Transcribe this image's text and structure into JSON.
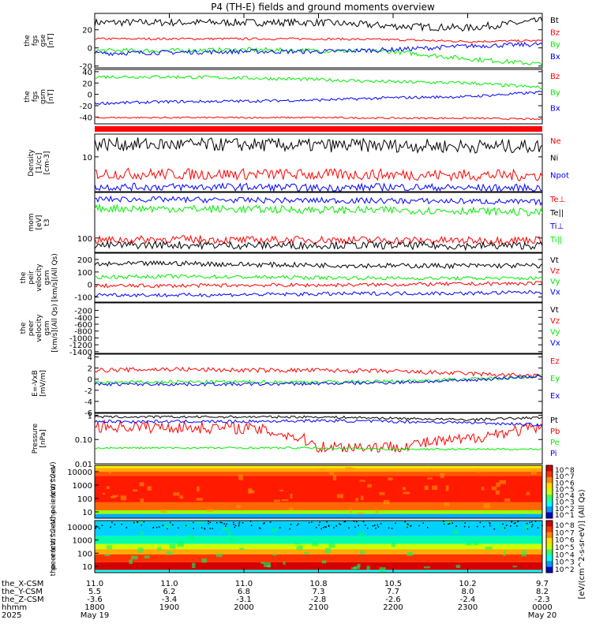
{
  "title": "P4 (TH-E) fields and ground moments overview",
  "colors": {
    "black": "#000000",
    "red": "#ff0000",
    "green": "#00ee00",
    "blue": "#0000ff"
  },
  "chart_data": {
    "type": "line",
    "time_axis": {
      "ticks": [
        "1800",
        "1900",
        "2000",
        "2100",
        "2200",
        "2300",
        "0000"
      ],
      "date_labels": {
        "first": "May 19",
        "last": "May 20"
      },
      "year": "2025",
      "rows": [
        {
          "label": "the_X-CSM",
          "values": [
            "11.0",
            "11.0",
            "11.0",
            "10.8",
            "10.5",
            "10.2",
            "9.7"
          ]
        },
        {
          "label": "the_Y-CSM",
          "values": [
            "5.5",
            "6.2",
            "6.8",
            "7.3",
            "7.7",
            "8.0",
            "8.2"
          ]
        },
        {
          "label": "the_Z-CSM",
          "values": [
            "-3.6",
            "-3.4",
            "-3.1",
            "-2.8",
            "-2.6",
            "-2.4",
            "-2.3"
          ]
        },
        {
          "label": "hhmm",
          "values": [
            "1800",
            "1900",
            "2000",
            "2100",
            "2200",
            "2300",
            "0000"
          ]
        }
      ]
    },
    "panels": [
      {
        "id": "fgs_gse",
        "ylabel": [
          "the",
          "fgs",
          "gse",
          "[nT]"
        ],
        "scale": "linear",
        "ylim": [
          -22,
          38
        ],
        "ticks": [
          {
            "v": 20,
            "l": "20"
          },
          {
            "v": 0,
            "l": "0"
          },
          {
            "v": -20,
            "l": "-20"
          }
        ],
        "series": [
          {
            "name": "Bt",
            "color": "black",
            "level": [
              28,
              28,
              28,
              28,
              24,
              22,
              30
            ],
            "amp": 4
          },
          {
            "name": "Bz",
            "color": "red",
            "level": [
              10,
              10,
              10,
              10,
              9,
              7,
              8
            ],
            "amp": 1.2
          },
          {
            "name": "By",
            "color": "green",
            "level": [
              -3,
              -3,
              -2,
              -3,
              -4,
              -12,
              -18
            ],
            "amp": 2.5
          },
          {
            "name": "Bx",
            "color": "blue",
            "level": [
              -6,
              -5,
              -4,
              -4,
              -2,
              2,
              4
            ],
            "amp": 2.5
          }
        ]
      },
      {
        "id": "fgs_gsm",
        "ylabel": [
          "the",
          "fgs",
          "gsm",
          "[nT]"
        ],
        "scale": "linear",
        "ylim": [
          -52,
          44
        ],
        "ticks": [
          {
            "v": 40,
            "l": "40"
          },
          {
            "v": 20,
            "l": "20"
          },
          {
            "v": 0,
            "l": "0"
          },
          {
            "v": -20,
            "l": "-20"
          },
          {
            "v": -40,
            "l": "-40"
          }
        ],
        "series": [
          {
            "name": "Bz",
            "color": "red",
            "level": [
              -41,
              -41,
              -41,
              -41,
              -42,
              -42,
              -44
            ],
            "amp": 1.5
          },
          {
            "name": "By",
            "color": "green",
            "level": [
              31,
              31,
              29,
              26,
              22,
              20,
              12
            ],
            "amp": 3
          },
          {
            "name": "Bx",
            "color": "blue",
            "level": [
              -16,
              -13,
              -12,
              -10,
              -6,
              -4,
              4
            ],
            "amp": 2.5
          }
        ]
      },
      {
        "id": "density",
        "ylabel": [
          "Density",
          "[1/cc]",
          "[cm-3]"
        ],
        "scale": "log",
        "ylim": [
          1.2,
          40
        ],
        "ticks": [
          {
            "v": 10,
            "l": "10"
          }
        ],
        "series": [
          {
            "name": "Ne",
            "color": "red",
            "level": [
              3.6,
              3.5,
              3.5,
              3.4,
              3.4,
              3.3,
              3.2
            ],
            "amp": 0.15
          },
          {
            "name": "Ni",
            "color": "black",
            "level": [
              22,
              21,
              21,
              20,
              20,
              19,
              19
            ],
            "amp": 0.18
          },
          {
            "name": "Npot",
            "color": "blue",
            "level": [
              1.6,
              1.6,
              1.6,
              1.5,
              1.6,
              1.5,
              1.5
            ],
            "amp": 0.1
          }
        ]
      },
      {
        "id": "temperature",
        "ylabel": [
          "mom",
          "[eV]",
          "t3"
        ],
        "scale": "log",
        "ylim": [
          50,
          900
        ],
        "ticks": [
          {
            "v": 100,
            "l": "100"
          }
        ],
        "series": [
          {
            "name": "Te⊥",
            "color": "red",
            "level": [
              90,
              95,
              90,
              92,
              90,
              88,
              92
            ],
            "amp": 0.08
          },
          {
            "name": "Te||",
            "color": "black",
            "level": [
              70,
              72,
              70,
              71,
              70,
              68,
              70
            ],
            "amp": 0.08
          },
          {
            "name": "Ti⊥",
            "color": "blue",
            "level": [
              650,
              640,
              620,
              610,
              600,
              590,
              560
            ],
            "amp": 0.06
          },
          {
            "name": "Ti||",
            "color": "green",
            "level": [
              420,
              410,
              400,
              390,
              380,
              370,
              340
            ],
            "amp": 0.08
          }
        ]
      },
      {
        "id": "peir_velocity",
        "ylabel": [
          "the",
          "peir",
          "velocity",
          "gsm",
          "[km/s](All Qs)"
        ],
        "scale": "linear",
        "ylim": [
          -140,
          250
        ],
        "ticks": [
          {
            "v": 200,
            "l": "200"
          },
          {
            "v": 100,
            "l": "100"
          },
          {
            "v": 0,
            "l": "0"
          },
          {
            "v": -100,
            "l": "-100"
          }
        ],
        "series": [
          {
            "name": "Vt",
            "color": "black",
            "level": [
              160,
              170,
              160,
              155,
              150,
              150,
              150
            ],
            "amp": 20
          },
          {
            "name": "Vz",
            "color": "red",
            "level": [
              -10,
              -10,
              -5,
              -5,
              0,
              5,
              10
            ],
            "amp": 15
          },
          {
            "name": "Vy",
            "color": "green",
            "level": [
              60,
              65,
              60,
              55,
              50,
              50,
              50
            ],
            "amp": 15
          },
          {
            "name": "Vx",
            "color": "blue",
            "level": [
              -80,
              -85,
              -80,
              -75,
              -70,
              -70,
              -60
            ],
            "amp": 15
          }
        ]
      },
      {
        "id": "peer_velocity",
        "ylabel": [
          "the",
          "peer",
          "velocity",
          "gsm",
          "[km/s](All Qs)"
        ],
        "scale": "linear",
        "ylim": [
          -1450,
          20
        ],
        "ticks": [
          {
            "v": -200,
            "l": "-200"
          },
          {
            "v": -400,
            "l": "-400"
          },
          {
            "v": -600,
            "l": "-600"
          },
          {
            "v": -800,
            "l": "-800"
          },
          {
            "v": -1000,
            "l": "-1000"
          },
          {
            "v": -1200,
            "l": "-1200"
          },
          {
            "v": -1400,
            "l": "-1400"
          }
        ],
        "series": [
          {
            "name": "Vt",
            "color": "black"
          },
          {
            "name": "Vz",
            "color": "red"
          },
          {
            "name": "Vy",
            "color": "green"
          },
          {
            "name": "Vx",
            "color": "blue"
          }
        ]
      },
      {
        "id": "efield",
        "ylabel": [
          "E=-VxB",
          "[mV/m]"
        ],
        "scale": "linear",
        "ylim": [
          -6,
          4.5
        ],
        "ticks": [
          {
            "v": 4,
            "l": "4"
          },
          {
            "v": 2,
            "l": "2"
          },
          {
            "v": 0,
            "l": "0"
          },
          {
            "v": -2,
            "l": "-2"
          },
          {
            "v": -4,
            "l": "-4"
          },
          {
            "v": -6,
            "l": "-6"
          }
        ],
        "series": [
          {
            "name": "Ez",
            "color": "red",
            "level": [
              1.6,
              1.8,
              1.6,
              1.6,
              1.4,
              1.0,
              0.5
            ],
            "amp": 0.4
          },
          {
            "name": "Ey",
            "color": "green",
            "level": [
              -0.6,
              -0.5,
              -0.5,
              -0.5,
              -0.4,
              0.0,
              0.5
            ],
            "amp": 0.3
          },
          {
            "name": "Ex",
            "color": "blue",
            "level": [
              -0.9,
              -0.9,
              -0.9,
              -0.8,
              -0.6,
              -0.2,
              0.6
            ],
            "amp": 0.3
          }
        ]
      },
      {
        "id": "pressure",
        "ylabel": [
          "Pressure",
          "[nPa]"
        ],
        "scale": "log",
        "ylim": [
          0.01,
          1.2
        ],
        "ticks": [
          {
            "v": 1,
            "l": "1"
          },
          {
            "v": 0.1,
            "l": "0.10"
          },
          {
            "v": 0.01,
            "l": "0.01"
          }
        ],
        "series": [
          {
            "name": "Pt",
            "color": "black",
            "level": [
              0.85,
              0.85,
              0.85,
              0.85,
              0.75,
              0.65,
              0.8
            ],
            "amp": 0.05
          },
          {
            "name": "Pb",
            "color": "red",
            "level": [
              0.35,
              0.32,
              0.3,
              0.05,
              0.05,
              0.1,
              0.3
            ],
            "amp": 0.25
          },
          {
            "name": "Pe",
            "color": "green",
            "level": [
              0.045,
              0.045,
              0.045,
              0.045,
              0.04,
              0.04,
              0.04
            ],
            "amp": 0.04
          },
          {
            "name": "Pi",
            "color": "blue",
            "level": [
              0.55,
              0.55,
              0.55,
              0.6,
              0.55,
              0.5,
              0.4
            ],
            "amp": 0.06
          }
        ]
      },
      {
        "id": "peir_spec",
        "ylabel": [
          "the",
          "peir",
          "en",
          "eV/",
          "(cm^2-s-",
          "sr-eV)"
        ],
        "type": "heatmap",
        "ticks": [
          {
            "l": "10000"
          },
          {
            "l": "1000"
          },
          {
            "l": "100"
          },
          {
            "l": "10"
          }
        ],
        "cbar_ticks": [
          "10^8",
          "10^7",
          "10^6",
          "10^5",
          "10^4",
          "10^3",
          "10^2",
          "10^1"
        ],
        "cbar_label": "[eV/(cm^2-s-sr-eV)] (All Qs)"
      },
      {
        "id": "peer_spec",
        "ylabel": [
          "the",
          "peer",
          "en",
          "eV/",
          "(cm^2-s-",
          "sr-eV)"
        ],
        "type": "heatmap",
        "ticks": [
          {
            "l": "10000"
          },
          {
            "l": "1000"
          },
          {
            "l": "100"
          },
          {
            "l": "10"
          }
        ],
        "cbar_ticks": [
          "10^8",
          "10^7",
          "10^6",
          "10^5",
          "10^4",
          "10^3",
          "10^2"
        ],
        "cbar_label": "[eV/(cm^2-s-sr-eV)] (All Qs)"
      }
    ]
  }
}
